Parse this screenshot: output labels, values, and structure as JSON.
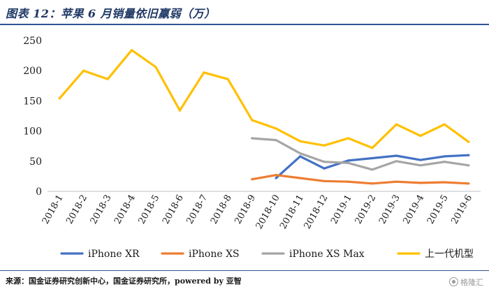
{
  "header": {
    "title": "图表 12：苹果 6 月销量依旧羸弱（万）"
  },
  "footer": {
    "source": "来源：国金证券研究创新中心，国金证券研究所，powered by 亚智",
    "watermark": "格隆汇"
  },
  "chart_data": {
    "type": "line",
    "title": "苹果 6 月销量依旧羸弱（万）",
    "ylim": [
      0,
      250
    ],
    "yticks": [
      0,
      50,
      100,
      150,
      200,
      250
    ],
    "grid": false,
    "legend_position": "bottom",
    "categories": [
      "2018-1",
      "2018-2",
      "2018-3",
      "2018-4",
      "2018-5",
      "2018-6",
      "2018-7",
      "2018-8",
      "2018-9",
      "2018-10",
      "2018-11",
      "2018-12",
      "2019-1",
      "2019-2",
      "2019-3",
      "2019-4",
      "2019-5",
      "2019-6"
    ],
    "series": [
      {
        "name": "iPhone XR",
        "color": "#4472c4",
        "values": [
          null,
          null,
          null,
          null,
          null,
          null,
          null,
          null,
          null,
          22,
          58,
          38,
          51,
          55,
          59,
          52,
          58,
          60
        ]
      },
      {
        "name": "iPhone XS",
        "color": "#ed7d31",
        "values": [
          null,
          null,
          null,
          null,
          null,
          null,
          null,
          null,
          20,
          27,
          22,
          17,
          16,
          13,
          16,
          14,
          15,
          13
        ]
      },
      {
        "name": "iPhone XS Max",
        "color": "#a5a5a5",
        "values": [
          null,
          null,
          null,
          null,
          null,
          null,
          null,
          null,
          88,
          85,
          63,
          49,
          47,
          36,
          50,
          43,
          49,
          43
        ]
      },
      {
        "name": "上一代机型",
        "color": "#ffc000",
        "values": [
          154,
          200,
          186,
          234,
          206,
          134,
          197,
          186,
          118,
          104,
          83,
          76,
          88,
          72,
          111,
          92,
          111,
          82
        ]
      }
    ]
  }
}
